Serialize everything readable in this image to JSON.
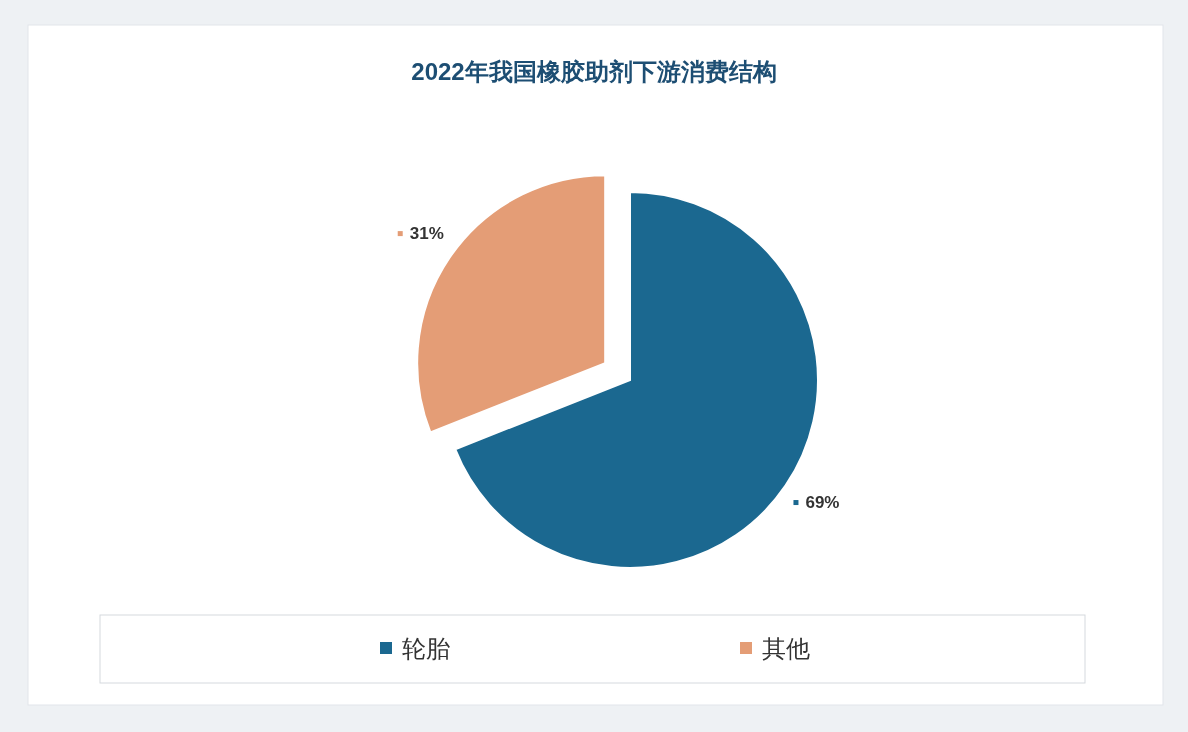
{
  "chart_data": {
    "type": "pie",
    "title": "2022年我国橡胶助剂下游消费结构",
    "categories": [
      "轮胎",
      "其他"
    ],
    "values": [
      69,
      31
    ],
    "colors": [
      "#1b6890",
      "#e49d76"
    ],
    "value_labels": [
      "69%",
      "31%"
    ],
    "legend": "bottom"
  }
}
